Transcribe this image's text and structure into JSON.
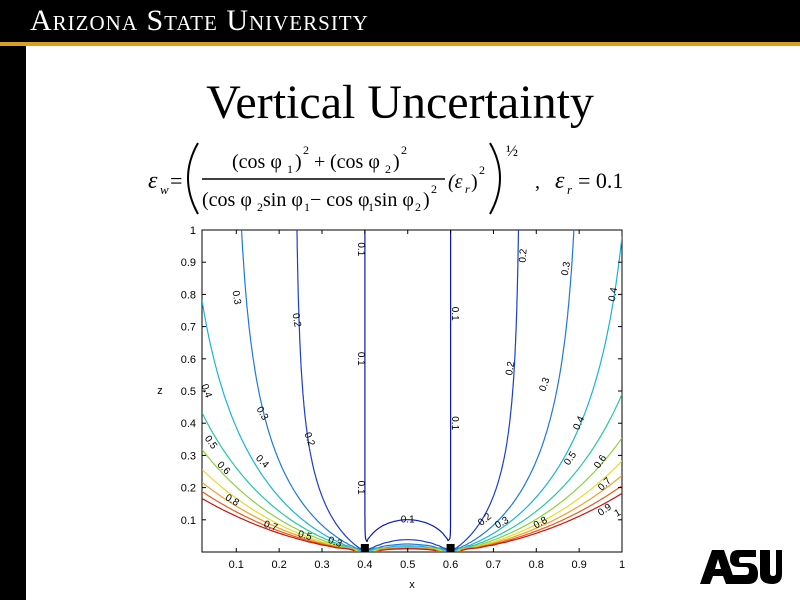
{
  "header": {
    "title": "Arizona State University"
  },
  "slide": {
    "title": "Vertical Uncertainty"
  },
  "equation": {
    "lhs": "ε",
    "lhs_sub": "w",
    "num_left": "(cos φ",
    "num_left_sub": "1",
    "num_left_close": ")",
    "num_left_sup": "2",
    "plus": "+",
    "num_right": "(cos φ",
    "num_right_sub": "2",
    "num_right_close": ")",
    "num_right_sup": "2",
    "den": "(cos φ",
    "den_sub_a": "2",
    "den_mid1": " sin φ",
    "den_sub_b": "1",
    "den_minus": " − cos φ",
    "den_sub_c": "1",
    "den_mid2": " sin φ",
    "den_sub_d": "2",
    "den_close": ")",
    "den_sup": "2",
    "er_open": "(ε",
    "er_sub": "r",
    "er_close": ")",
    "er_sup": "2",
    "outer_power": "½",
    "comma": ",",
    "cond_lhs": "ε",
    "cond_sub": "r",
    "cond_rhs": "= 0.1"
  },
  "chart_data": {
    "type": "contour",
    "title": "",
    "xlabel": "x",
    "ylabel": "z",
    "xlim": [
      0,
      1
    ],
    "ylim": [
      0,
      1
    ],
    "x_ticks": [
      "0.1",
      "0.2",
      "0.3",
      "0.4",
      "0.5",
      "0.6",
      "0.7",
      "0.8",
      "0.9",
      "1"
    ],
    "y_ticks": [
      "0.1",
      "0.2",
      "0.3",
      "0.4",
      "0.5",
      "0.6",
      "0.7",
      "0.8",
      "0.9",
      "1"
    ],
    "markers": [
      {
        "x": 0.4,
        "z": 0
      },
      {
        "x": 0.6,
        "z": 0
      }
    ],
    "levels": [
      {
        "value": "0.1",
        "color": "#0a18b4"
      },
      {
        "value": "0.2",
        "color": "#1a3fc8"
      },
      {
        "value": "0.3",
        "color": "#1e78d8"
      },
      {
        "value": "0.4",
        "color": "#18b4d8"
      },
      {
        "value": "0.5",
        "color": "#24c8a0"
      },
      {
        "value": "0.6",
        "color": "#8cd23c"
      },
      {
        "value": "0.7",
        "color": "#e6dc28"
      },
      {
        "value": "0.8",
        "color": "#f0a028"
      },
      {
        "value": "0.9",
        "color": "#e85a1e"
      },
      {
        "value": "1",
        "color": "#c81414"
      }
    ],
    "contour_labels": [
      {
        "text": "0.1",
        "x": 0.39,
        "z": 0.94,
        "rot": 90
      },
      {
        "text": "0.1",
        "x": 0.39,
        "z": 0.6,
        "rot": 90
      },
      {
        "text": "0.1",
        "x": 0.39,
        "z": 0.2,
        "rot": 90
      },
      {
        "text": "0.1",
        "x": 0.61,
        "z": 0.74,
        "rot": 90
      },
      {
        "text": "0.1",
        "x": 0.61,
        "z": 0.4,
        "rot": 90
      },
      {
        "text": "0.1",
        "x": 0.5,
        "z": 0.1,
        "rot": 0
      },
      {
        "text": "0.2",
        "x": 0.24,
        "z": 0.72,
        "rot": 80
      },
      {
        "text": "0.2",
        "x": 0.27,
        "z": 0.35,
        "rot": 70
      },
      {
        "text": "0.2",
        "x": 0.77,
        "z": 0.92,
        "rot": -85
      },
      {
        "text": "0.2",
        "x": 0.74,
        "z": 0.57,
        "rot": -80
      },
      {
        "text": "0.2",
        "x": 0.68,
        "z": 0.1,
        "rot": -40
      },
      {
        "text": "0.3",
        "x": 0.1,
        "z": 0.79,
        "rot": 80
      },
      {
        "text": "0.3",
        "x": 0.16,
        "z": 0.43,
        "rot": 60
      },
      {
        "text": "0.3",
        "x": 0.33,
        "z": 0.03,
        "rot": 20
      },
      {
        "text": "0.3",
        "x": 0.87,
        "z": 0.88,
        "rot": -80
      },
      {
        "text": "0.3",
        "x": 0.82,
        "z": 0.52,
        "rot": -70
      },
      {
        "text": "0.3",
        "x": 0.72,
        "z": 0.09,
        "rot": -30
      },
      {
        "text": "0.4",
        "x": 0.03,
        "z": 0.5,
        "rot": 70
      },
      {
        "text": "0.4",
        "x": 0.16,
        "z": 0.28,
        "rot": 45
      },
      {
        "text": "0.4",
        "x": 0.98,
        "z": 0.8,
        "rot": -80
      },
      {
        "text": "0.4",
        "x": 0.9,
        "z": 0.4,
        "rot": -65
      },
      {
        "text": "0.5",
        "x": 0.04,
        "z": 0.34,
        "rot": 55
      },
      {
        "text": "0.5",
        "x": 0.26,
        "z": 0.05,
        "rot": 15
      },
      {
        "text": "0.5",
        "x": 0.88,
        "z": 0.29,
        "rot": -55
      },
      {
        "text": "0.6",
        "x": 0.07,
        "z": 0.26,
        "rot": 45
      },
      {
        "text": "0.6",
        "x": 0.95,
        "z": 0.28,
        "rot": -55
      },
      {
        "text": "0.7",
        "x": 0.18,
        "z": 0.08,
        "rot": 20
      },
      {
        "text": "0.7",
        "x": 0.96,
        "z": 0.21,
        "rot": -45
      },
      {
        "text": "0.8",
        "x": 0.09,
        "z": 0.16,
        "rot": 30
      },
      {
        "text": "0.8",
        "x": 0.81,
        "z": 0.09,
        "rot": -30
      },
      {
        "text": "0.9",
        "x": 0.96,
        "z": 0.13,
        "rot": -35
      },
      {
        "text": "1",
        "x": 0.99,
        "z": 0.12,
        "rot": -30
      }
    ]
  }
}
